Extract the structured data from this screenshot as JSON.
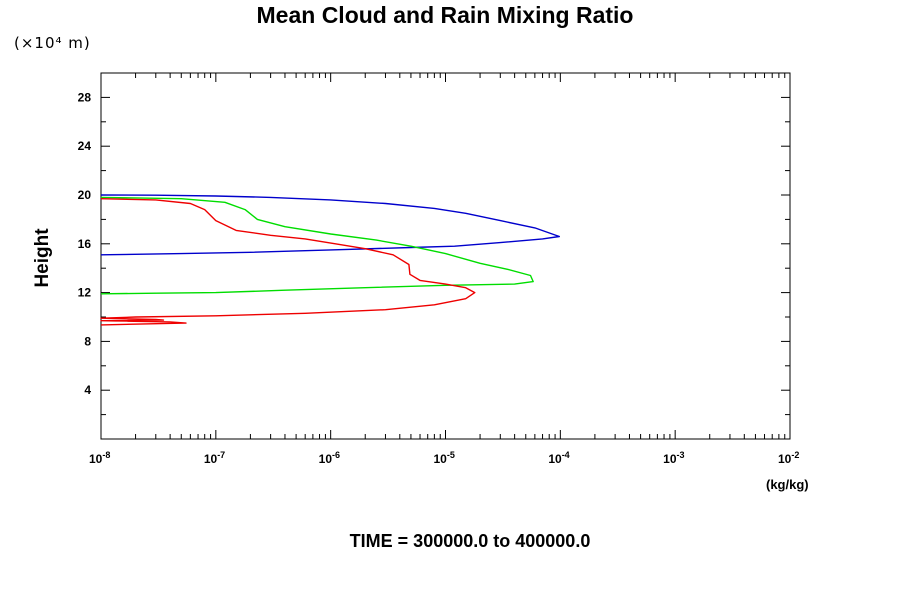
{
  "chart_data": {
    "type": "line",
    "title": "Mean Cloud and Rain Mixing Ratio",
    "ylabel": "Height",
    "y_unit_label": "(×10⁴ m)",
    "x_unit_label": "(kg/kg)",
    "x_scale": "log",
    "xlim": [
      1e-08,
      0.01
    ],
    "ylim": [
      0,
      30
    ],
    "x_ticks": [
      {
        "base": "10",
        "exp": "-8",
        "value": 1e-08
      },
      {
        "base": "10",
        "exp": "-7",
        "value": 1e-07
      },
      {
        "base": "10",
        "exp": "-6",
        "value": 1e-06
      },
      {
        "base": "10",
        "exp": "-5",
        "value": 1e-05
      },
      {
        "base": "10",
        "exp": "-4",
        "value": 0.0001
      },
      {
        "base": "10",
        "exp": "-3",
        "value": 0.001
      },
      {
        "base": "10",
        "exp": "-2",
        "value": 0.01
      }
    ],
    "y_ticks": [
      4,
      8,
      12,
      16,
      20,
      24,
      28
    ],
    "grid": false,
    "series": [
      {
        "color": "#0000cc",
        "points": [
          [
            1e-08,
            20.0
          ],
          [
            3e-08,
            19.98
          ],
          [
            1e-07,
            19.92
          ],
          [
            3e-07,
            19.8
          ],
          [
            1e-06,
            19.6
          ],
          [
            3e-06,
            19.3
          ],
          [
            8e-06,
            18.9
          ],
          [
            1.5e-05,
            18.5
          ],
          [
            3e-05,
            17.9
          ],
          [
            6e-05,
            17.3
          ],
          [
            9.8e-05,
            16.6
          ],
          [
            7e-05,
            16.4
          ],
          [
            3e-05,
            16.1
          ],
          [
            1.2e-05,
            15.8
          ],
          [
            5e-06,
            15.7
          ],
          [
            1e-06,
            15.5
          ],
          [
            2e-07,
            15.3
          ],
          [
            5e-08,
            15.2
          ],
          [
            1e-08,
            15.1
          ]
        ]
      },
      {
        "color": "#00dd00",
        "points": [
          [
            1e-08,
            19.8
          ],
          [
            5e-08,
            19.7
          ],
          [
            1.2e-07,
            19.4
          ],
          [
            1.8e-07,
            18.8
          ],
          [
            2.3e-07,
            18.0
          ],
          [
            4e-07,
            17.4
          ],
          [
            1e-06,
            16.8
          ],
          [
            2.5e-06,
            16.3
          ],
          [
            5e-06,
            15.8
          ],
          [
            1e-05,
            15.2
          ],
          [
            2e-05,
            14.4
          ],
          [
            3.5e-05,
            13.9
          ],
          [
            5.5e-05,
            13.4
          ],
          [
            5.8e-05,
            12.9
          ],
          [
            4e-05,
            12.7
          ],
          [
            1e-05,
            12.6
          ],
          [
            2e-06,
            12.4
          ],
          [
            4e-07,
            12.2
          ],
          [
            1e-07,
            12.0
          ],
          [
            3e-08,
            11.95
          ],
          [
            1e-08,
            11.9
          ]
        ]
      },
      {
        "color": "#ee0000",
        "points": [
          [
            1e-08,
            19.7
          ],
          [
            3e-08,
            19.6
          ],
          [
            6e-08,
            19.3
          ],
          [
            8e-08,
            18.8
          ],
          [
            1e-07,
            17.9
          ],
          [
            1.5e-07,
            17.1
          ],
          [
            3e-07,
            16.7
          ],
          [
            6e-07,
            16.4
          ],
          [
            1.1e-06,
            16.0
          ],
          [
            2e-06,
            15.6
          ],
          [
            3.5e-06,
            15.1
          ],
          [
            4.8e-06,
            14.3
          ],
          [
            4.9e-06,
            13.5
          ],
          [
            6e-06,
            13.0
          ],
          [
            1e-05,
            12.7
          ],
          [
            1.5e-05,
            12.4
          ],
          [
            1.8e-05,
            12.0
          ],
          [
            1.5e-05,
            11.5
          ],
          [
            8e-06,
            11.0
          ],
          [
            3e-06,
            10.6
          ],
          [
            6e-07,
            10.3
          ],
          [
            1e-07,
            10.1
          ],
          [
            2e-08,
            10.0
          ],
          [
            1e-08,
            9.9
          ],
          [
            3e-08,
            9.8
          ],
          [
            3.5e-08,
            9.75
          ],
          [
            1e-08,
            9.7
          ],
          [
            4e-08,
            9.6
          ],
          [
            5.5e-08,
            9.5
          ],
          [
            1e-08,
            9.35
          ]
        ]
      }
    ]
  },
  "footer": "TIME = 300000.0 to 400000.0"
}
